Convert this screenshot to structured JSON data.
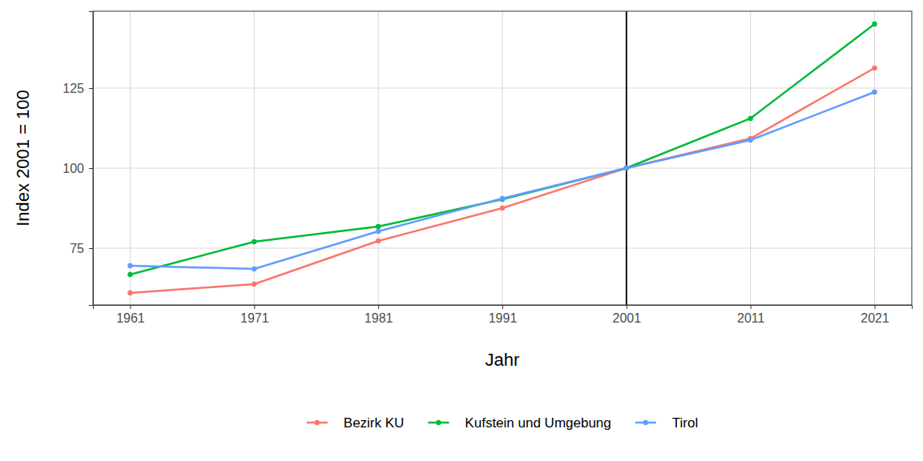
{
  "chart_data": {
    "type": "line",
    "x_label": "Jahr",
    "y_label": "Index 2001 = 100",
    "x": [
      1961,
      1971,
      1981,
      1991,
      2001,
      2011,
      2021
    ],
    "series": [
      {
        "name": "Bezirk KU",
        "color": "#F8766D",
        "values": [
          61,
          63.75,
          77.25,
          87.5,
          100,
          109.25,
          131.25
        ]
      },
      {
        "name": "Kufstein und Umgebung",
        "color": "#00BA38",
        "values": [
          66.75,
          77,
          81.75,
          90.25,
          100,
          115.5,
          145
        ]
      },
      {
        "name": "Tirol",
        "color": "#619CFF",
        "values": [
          69.5,
          68.5,
          80.25,
          90.5,
          100,
          108.75,
          123.75
        ]
      }
    ],
    "xlim": [
      1958,
      2024
    ],
    "xticks": [
      1961,
      1971,
      1981,
      1991,
      2001,
      2011,
      2021
    ],
    "ylim": [
      57.25,
      149
    ],
    "yticks": [
      75,
      100,
      125
    ],
    "vline": 2001,
    "grid": true,
    "legend": "bottom",
    "marker": "circle",
    "line_style": "solid"
  }
}
